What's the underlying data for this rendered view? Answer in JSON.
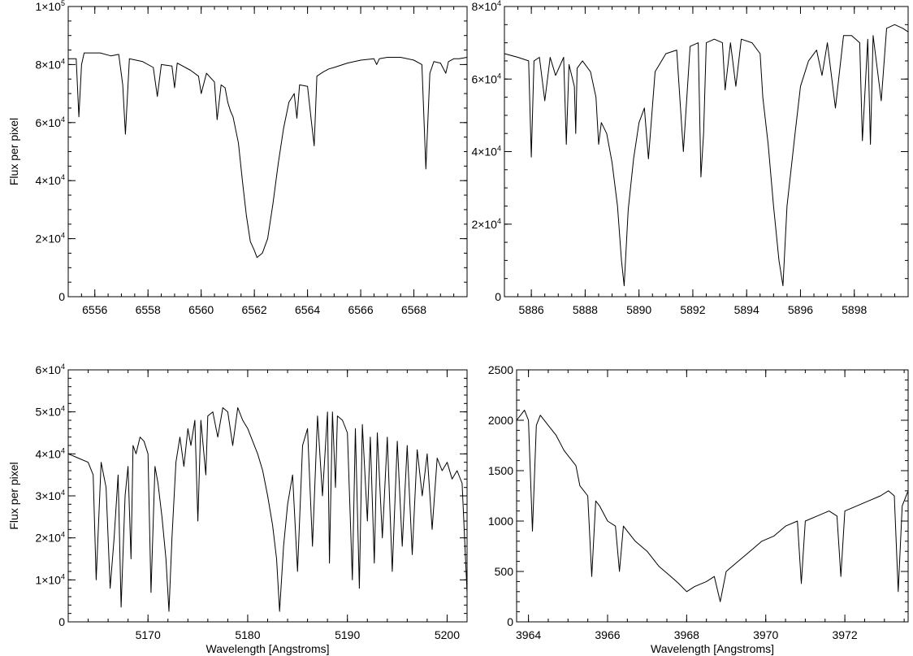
{
  "chart_data": [
    {
      "type": "line",
      "title": "",
      "xlabel": "",
      "ylabel": "Flux per pixel",
      "xlim": [
        6555,
        6570
      ],
      "ylim": [
        0,
        100000
      ],
      "xticks": [
        6556,
        6558,
        6560,
        6562,
        6564,
        6566,
        6568
      ],
      "xtick_labels": [
        "6556",
        "6558",
        "6560",
        "6562",
        "6564",
        "6566",
        "6568"
      ],
      "x_minor_step": 0.5,
      "yticks": [
        {
          "value": 0,
          "mantissa": "0",
          "exp": ""
        },
        {
          "value": 20000,
          "mantissa": "2×10",
          "exp": "4"
        },
        {
          "value": 40000,
          "mantissa": "4×10",
          "exp": "4"
        },
        {
          "value": 60000,
          "mantissa": "6×10",
          "exp": "4"
        },
        {
          "value": 80000,
          "mantissa": "8×10",
          "exp": "4"
        },
        {
          "value": 100000,
          "mantissa": "1×10",
          "exp": "5"
        }
      ],
      "y_minor_step": 5000,
      "series": [
        {
          "x": [
            6555.0,
            6555.3,
            6555.4,
            6555.5,
            6555.6,
            6555.8,
            6556.2,
            6556.6,
            6556.9,
            6557.05,
            6557.15,
            6557.3,
            6557.8,
            6558.2,
            6558.35,
            6558.5,
            6558.9,
            6559.0,
            6559.1,
            6559.6,
            6559.9,
            6560.0,
            6560.2,
            6560.5,
            6560.6,
            6560.75,
            6560.9,
            6561.0,
            6561.1,
            6561.2,
            6561.4,
            6561.55,
            6561.7,
            6561.85,
            6562.0,
            6562.1,
            6562.3,
            6562.5,
            6562.7,
            6562.9,
            6563.1,
            6563.3,
            6563.5,
            6563.6,
            6563.7,
            6564.0,
            6564.15,
            6564.25,
            6564.35,
            6564.6,
            6564.8,
            6565.0,
            6565.5,
            6566.0,
            6566.5,
            6566.6,
            6566.7,
            6567.0,
            6567.5,
            6568.0,
            6568.3,
            6568.45,
            6568.6,
            6568.75,
            6569.0,
            6569.2,
            6569.3,
            6569.5,
            6569.7,
            6570.0
          ],
          "y": [
            82000,
            82000,
            62000,
            80000,
            84000,
            84000,
            84000,
            83000,
            83500,
            73000,
            56000,
            82000,
            81000,
            79000,
            69000,
            80000,
            79500,
            72000,
            80500,
            78000,
            76000,
            70000,
            77000,
            74000,
            61000,
            73000,
            72000,
            67000,
            64000,
            62000,
            53000,
            40000,
            28000,
            19000,
            16000,
            13500,
            15000,
            20000,
            32000,
            46000,
            58000,
            67000,
            70000,
            61500,
            73000,
            72500,
            60000,
            52000,
            76000,
            77500,
            78500,
            79000,
            80500,
            81500,
            82000,
            80000,
            82000,
            82500,
            82500,
            81500,
            80000,
            44000,
            77000,
            81000,
            80500,
            77000,
            81000,
            82000,
            82000,
            82500
          ]
        }
      ]
    },
    {
      "type": "line",
      "title": "",
      "xlabel": "",
      "ylabel": "",
      "xlim": [
        5885,
        5900
      ],
      "ylim": [
        0,
        80000
      ],
      "xticks": [
        5886,
        5888,
        5890,
        5892,
        5894,
        5896,
        5898
      ],
      "xtick_labels": [
        "5886",
        "5888",
        "5890",
        "5892",
        "5894",
        "5896",
        "5898"
      ],
      "x_minor_step": 0.5,
      "yticks": [
        {
          "value": 0,
          "mantissa": "0",
          "exp": ""
        },
        {
          "value": 20000,
          "mantissa": "2×10",
          "exp": "4"
        },
        {
          "value": 40000,
          "mantissa": "4×10",
          "exp": "4"
        },
        {
          "value": 60000,
          "mantissa": "6×10",
          "exp": "4"
        },
        {
          "value": 80000,
          "mantissa": "8×10",
          "exp": "4"
        }
      ],
      "y_minor_step": 5000,
      "series": [
        {
          "x": [
            5885.0,
            5885.5,
            5885.9,
            5886.0,
            5886.1,
            5886.3,
            5886.5,
            5886.7,
            5886.9,
            5887.2,
            5887.3,
            5887.4,
            5887.6,
            5887.65,
            5887.7,
            5887.9,
            5888.2,
            5888.4,
            5888.5,
            5888.6,
            5888.8,
            5889.0,
            5889.2,
            5889.35,
            5889.45,
            5889.6,
            5889.8,
            5890.0,
            5890.2,
            5890.35,
            5890.6,
            5891.0,
            5891.4,
            5891.65,
            5891.9,
            5892.2,
            5892.3,
            5892.4,
            5892.5,
            5892.8,
            5893.1,
            5893.2,
            5893.4,
            5893.6,
            5893.8,
            5894.2,
            5894.5,
            5894.6,
            5894.8,
            5895.0,
            5895.2,
            5895.35,
            5895.5,
            5895.8,
            5896.0,
            5896.3,
            5896.6,
            5896.8,
            5897.0,
            5897.3,
            5897.6,
            5897.9,
            5898.2,
            5898.3,
            5898.5,
            5898.6,
            5898.7,
            5899.0,
            5899.2,
            5899.5,
            5899.8,
            5900.0
          ],
          "y": [
            67000,
            66000,
            65000,
            38500,
            65000,
            66000,
            54000,
            66000,
            61000,
            66000,
            42000,
            64000,
            58000,
            45000,
            63000,
            65000,
            62000,
            55000,
            42000,
            48000,
            45000,
            37000,
            25000,
            10000,
            3000,
            24000,
            38000,
            48000,
            52000,
            38000,
            62000,
            67000,
            68000,
            40000,
            69000,
            70000,
            33000,
            45000,
            70000,
            71000,
            70000,
            57000,
            70000,
            58000,
            71000,
            70000,
            67000,
            55000,
            42000,
            25000,
            10000,
            3000,
            25000,
            45000,
            58000,
            65000,
            68000,
            61000,
            70000,
            52000,
            72000,
            72000,
            70000,
            43000,
            71000,
            42000,
            72000,
            54000,
            74000,
            75000,
            74000,
            73000
          ]
        }
      ]
    },
    {
      "type": "line",
      "title": "",
      "xlabel": "Wavelength [Angstroms]",
      "ylabel": "Flux per pixel",
      "xlim": [
        5162,
        5202
      ],
      "ylim": [
        0,
        60000
      ],
      "xticks": [
        5170,
        5180,
        5190,
        5200
      ],
      "xtick_labels": [
        "5170",
        "5180",
        "5190",
        "5200"
      ],
      "x_minor_step": 2,
      "yticks": [
        {
          "value": 0,
          "mantissa": "0",
          "exp": ""
        },
        {
          "value": 10000,
          "mantissa": "1×10",
          "exp": "4"
        },
        {
          "value": 20000,
          "mantissa": "2×10",
          "exp": "4"
        },
        {
          "value": 30000,
          "mantissa": "3×10",
          "exp": "4"
        },
        {
          "value": 40000,
          "mantissa": "4×10",
          "exp": "4"
        },
        {
          "value": 50000,
          "mantissa": "5×10",
          "exp": "4"
        },
        {
          "value": 60000,
          "mantissa": "6×10",
          "exp": "4"
        }
      ],
      "y_minor_step": 2000,
      "series": [
        {
          "x": [
            5162.0,
            5163.0,
            5164.0,
            5164.5,
            5164.8,
            5165.3,
            5165.8,
            5166.2,
            5166.6,
            5167.0,
            5167.3,
            5167.7,
            5168.0,
            5168.3,
            5168.5,
            5168.8,
            5169.2,
            5169.6,
            5170.0,
            5170.3,
            5170.7,
            5171.0,
            5171.4,
            5171.8,
            5172.1,
            5172.4,
            5172.8,
            5173.2,
            5173.6,
            5174.0,
            5174.3,
            5174.7,
            5175.0,
            5175.3,
            5175.8,
            5176.0,
            5176.5,
            5177.0,
            5177.5,
            5178.0,
            5178.5,
            5179.0,
            5179.5,
            5180.0,
            5180.5,
            5181.0,
            5181.5,
            5182.0,
            5182.5,
            5182.9,
            5183.2,
            5183.6,
            5184.0,
            5184.5,
            5185.0,
            5185.5,
            5186.0,
            5186.5,
            5187.0,
            5187.5,
            5188.0,
            5188.2,
            5188.5,
            5188.8,
            5189.0,
            5189.5,
            5190.0,
            5190.5,
            5190.8,
            5191.2,
            5191.5,
            5192.0,
            5192.3,
            5192.7,
            5193.0,
            5193.5,
            5194.0,
            5194.5,
            5195.0,
            5195.5,
            5196.0,
            5196.5,
            5197.0,
            5197.5,
            5198.0,
            5198.5,
            5199.0,
            5199.5,
            5200.0,
            5200.5,
            5201.0,
            5201.5,
            5202.0
          ],
          "y": [
            40000,
            39000,
            38000,
            35000,
            10000,
            38000,
            32000,
            8000,
            20000,
            35000,
            3500,
            30000,
            37000,
            15000,
            42000,
            40000,
            44000,
            43000,
            40000,
            7000,
            37000,
            33000,
            25000,
            15000,
            2500,
            20000,
            38000,
            44000,
            37000,
            46000,
            42000,
            48000,
            24000,
            48000,
            35000,
            49000,
            50000,
            44000,
            51000,
            50000,
            42000,
            51000,
            48000,
            46000,
            43000,
            40000,
            36000,
            30000,
            23000,
            15000,
            2500,
            18000,
            28000,
            35000,
            12000,
            42000,
            46000,
            18000,
            49000,
            30000,
            50000,
            14000,
            50000,
            32000,
            49000,
            48000,
            45000,
            10000,
            46000,
            8000,
            47000,
            24000,
            44000,
            14000,
            45000,
            20000,
            44000,
            12000,
            43000,
            18000,
            42000,
            16000,
            41000,
            30000,
            40000,
            22000,
            39000,
            36000,
            38000,
            34000,
            36000,
            33000,
            7000
          ]
        }
      ]
    },
    {
      "type": "line",
      "title": "",
      "xlabel": "Wavelength [Angstroms]",
      "ylabel": "",
      "xlim": [
        3963.7,
        3973.6
      ],
      "ylim": [
        0,
        2500
      ],
      "xticks": [
        3964,
        3966,
        3968,
        3970,
        3972
      ],
      "xtick_labels": [
        "3964",
        "3966",
        "3968",
        "3970",
        "3972"
      ],
      "x_minor_step": 0.5,
      "yticks": [
        {
          "value": 0,
          "mantissa": "0",
          "exp": ""
        },
        {
          "value": 500,
          "mantissa": "500",
          "exp": ""
        },
        {
          "value": 1000,
          "mantissa": "1000",
          "exp": ""
        },
        {
          "value": 1500,
          "mantissa": "1500",
          "exp": ""
        },
        {
          "value": 2000,
          "mantissa": "2000",
          "exp": ""
        },
        {
          "value": 2500,
          "mantissa": "2500",
          "exp": ""
        }
      ],
      "y_minor_step": 100,
      "series": [
        {
          "x": [
            3963.7,
            3963.9,
            3964.0,
            3964.1,
            3964.2,
            3964.3,
            3964.5,
            3964.7,
            3964.9,
            3965.0,
            3965.2,
            3965.3,
            3965.5,
            3965.6,
            3965.7,
            3965.8,
            3966.0,
            3966.2,
            3966.3,
            3966.4,
            3966.5,
            3966.7,
            3967.0,
            3967.3,
            3967.6,
            3967.8,
            3968.0,
            3968.2,
            3968.5,
            3968.7,
            3968.85,
            3969.0,
            3969.3,
            3969.6,
            3969.9,
            3970.2,
            3970.5,
            3970.8,
            3970.9,
            3971.0,
            3971.3,
            3971.6,
            3971.8,
            3971.9,
            3972.0,
            3972.3,
            3972.6,
            3972.9,
            3973.1,
            3973.25,
            3973.35,
            3973.45,
            3973.6
          ],
          "y": [
            2000,
            2100,
            2000,
            900,
            1950,
            2050,
            1950,
            1850,
            1700,
            1650,
            1550,
            1350,
            1250,
            450,
            1200,
            1150,
            1000,
            950,
            500,
            950,
            900,
            800,
            700,
            550,
            450,
            380,
            300,
            350,
            400,
            450,
            200,
            500,
            600,
            700,
            800,
            850,
            950,
            1000,
            380,
            1000,
            1050,
            1100,
            1050,
            450,
            1100,
            1150,
            1200,
            1250,
            1300,
            1250,
            300,
            1150,
            1300
          ]
        }
      ]
    }
  ]
}
